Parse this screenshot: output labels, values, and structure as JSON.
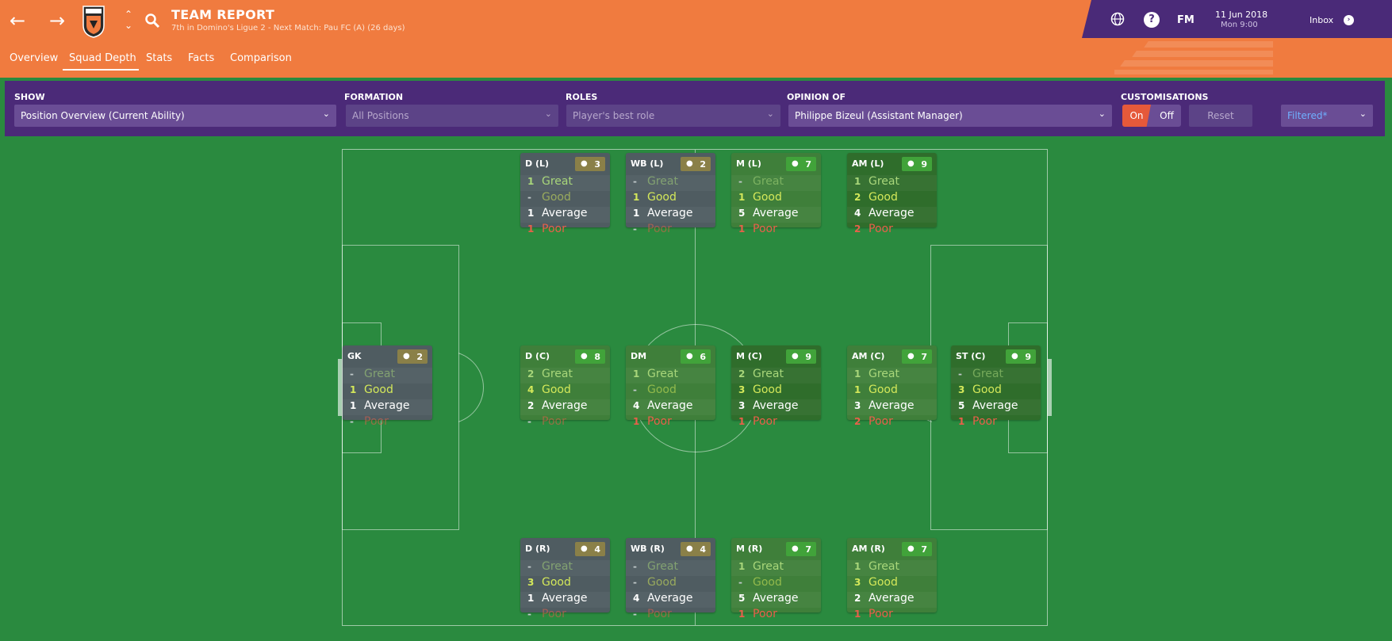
{
  "header": {
    "title": "TEAM REPORT",
    "subtitle": "7th in Domino's Ligue 2 - Next Match: Pau FC (A) (26 days)",
    "date": "11 Jun 2018",
    "time": "Mon 9:00",
    "fm": "FM",
    "inbox": "Inbox",
    "crest_text": "FC LORIENT"
  },
  "tabs": [
    "Overview",
    "Squad Depth",
    "Stats",
    "Facts",
    "Comparison"
  ],
  "toolbar": {
    "show_label": "SHOW",
    "show_value": "Position Overview (Current Ability)",
    "formation_label": "FORMATION",
    "formation_value": "All Positions",
    "roles_label": "ROLES",
    "roles_value": "Player's best role",
    "opinion_label": "OPINION OF",
    "opinion_value": "Philippe Bizeul (Assistant Manager)",
    "custom_label": "CUSTOMISATIONS",
    "on": "On",
    "off": "Off",
    "reset": "Reset",
    "filtered": "Filtered*"
  },
  "rating_labels": [
    "Great",
    "Good",
    "Average",
    "Poor"
  ],
  "colors": {
    "header": "#f07b3f",
    "toolbar": "#4b2a78",
    "pitch": "#2a8a3f",
    "great": "#a8d67a",
    "good": "#d4e85a",
    "average": "#ffffff",
    "poor": "#e8604a"
  },
  "positions": [
    {
      "id": "dl",
      "name": "D (L)",
      "count": "3",
      "counts": [
        "1",
        "-",
        "1",
        "1"
      ],
      "tone": "grey",
      "badge": "olive"
    },
    {
      "id": "wbl",
      "name": "WB (L)",
      "count": "2",
      "counts": [
        "-",
        "1",
        "1",
        "-"
      ],
      "tone": "grey",
      "badge": "olive"
    },
    {
      "id": "ml",
      "name": "M (L)",
      "count": "7",
      "counts": [
        "-",
        "1",
        "5",
        "1"
      ],
      "tone": "mid",
      "badge": "green"
    },
    {
      "id": "aml",
      "name": "AM (L)",
      "count": "9",
      "counts": [
        "1",
        "2",
        "4",
        "2"
      ],
      "tone": "dark",
      "badge": "green"
    },
    {
      "id": "gk",
      "name": "GK",
      "count": "2",
      "counts": [
        "-",
        "1",
        "1",
        "-"
      ],
      "tone": "grey",
      "badge": "olive"
    },
    {
      "id": "dc",
      "name": "D (C)",
      "count": "8",
      "counts": [
        "2",
        "4",
        "2",
        "-"
      ],
      "tone": "mid",
      "badge": "green"
    },
    {
      "id": "dm",
      "name": "DM",
      "count": "6",
      "counts": [
        "1",
        "-",
        "4",
        "1"
      ],
      "tone": "mid",
      "badge": "green"
    },
    {
      "id": "mc",
      "name": "M (C)",
      "count": "9",
      "counts": [
        "2",
        "3",
        "3",
        "1"
      ],
      "tone": "dark",
      "badge": "green"
    },
    {
      "id": "amc",
      "name": "AM (C)",
      "count": "7",
      "counts": [
        "1",
        "1",
        "3",
        "2"
      ],
      "tone": "mid",
      "badge": "green"
    },
    {
      "id": "stc",
      "name": "ST (C)",
      "count": "9",
      "counts": [
        "-",
        "3",
        "5",
        "1"
      ],
      "tone": "dark",
      "badge": "green"
    },
    {
      "id": "dr",
      "name": "D (R)",
      "count": "4",
      "counts": [
        "-",
        "3",
        "1",
        "-"
      ],
      "tone": "grey",
      "badge": "olive"
    },
    {
      "id": "wbr",
      "name": "WB (R)",
      "count": "4",
      "counts": [
        "-",
        "-",
        "4",
        "-"
      ],
      "tone": "grey",
      "badge": "olive"
    },
    {
      "id": "mr",
      "name": "M (R)",
      "count": "7",
      "counts": [
        "1",
        "-",
        "5",
        "1"
      ],
      "tone": "mid",
      "badge": "green"
    },
    {
      "id": "amr",
      "name": "AM (R)",
      "count": "7",
      "counts": [
        "1",
        "3",
        "2",
        "1"
      ],
      "tone": "mid",
      "badge": "green"
    }
  ]
}
